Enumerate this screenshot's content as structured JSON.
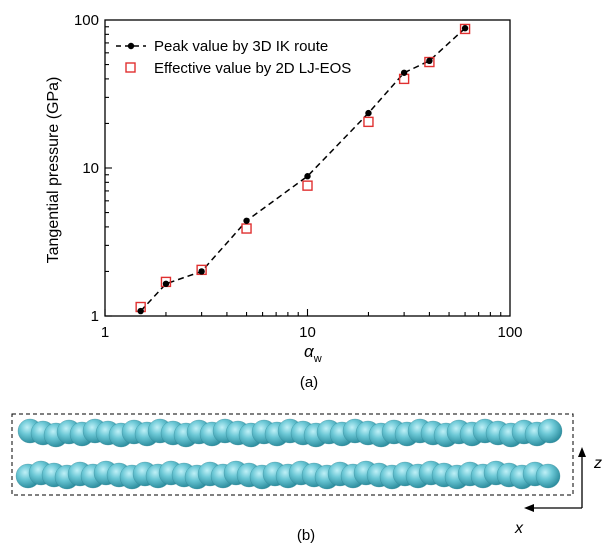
{
  "figure_a": {
    "panel_label": "(a)",
    "chart_data": {
      "type": "scatter",
      "xscale": "log",
      "yscale": "log",
      "xlim": [
        1,
        100
      ],
      "ylim": [
        1,
        100
      ],
      "xticks": [
        1,
        10,
        100
      ],
      "yticks": [
        1,
        10,
        100
      ],
      "xtick_labels": [
        "1",
        "10",
        "100"
      ],
      "ytick_labels": [
        "1",
        "10",
        "100"
      ],
      "xlabel_main": "α",
      "xlabel_sub": "w",
      "ylabel": "Tangential pressure (GPa)",
      "grid": false,
      "legend_position": "top-left",
      "series": [
        {
          "name": "Peak value by 3D IK route",
          "marker": "filled-circle",
          "line": "dashed",
          "color": "#000000",
          "x": [
            1.5,
            2,
            3,
            5,
            10,
            20,
            30,
            40,
            60
          ],
          "y": [
            1.08,
            1.65,
            2.0,
            4.4,
            8.8,
            23.5,
            44,
            53,
            88
          ]
        },
        {
          "name": "Effective value by 2D LJ-EOS",
          "marker": "open-square",
          "line": "none",
          "color": "#e03030",
          "x": [
            1.5,
            2,
            3,
            5,
            10,
            20,
            30,
            40,
            60
          ],
          "y": [
            1.15,
            1.7,
            2.05,
            3.9,
            7.6,
            20.5,
            40,
            52,
            87
          ]
        }
      ]
    }
  },
  "figure_b": {
    "panel_label": "(b)",
    "axis_z_label": "z",
    "axis_x_label": "x",
    "atom_color": "#5bbccc"
  }
}
